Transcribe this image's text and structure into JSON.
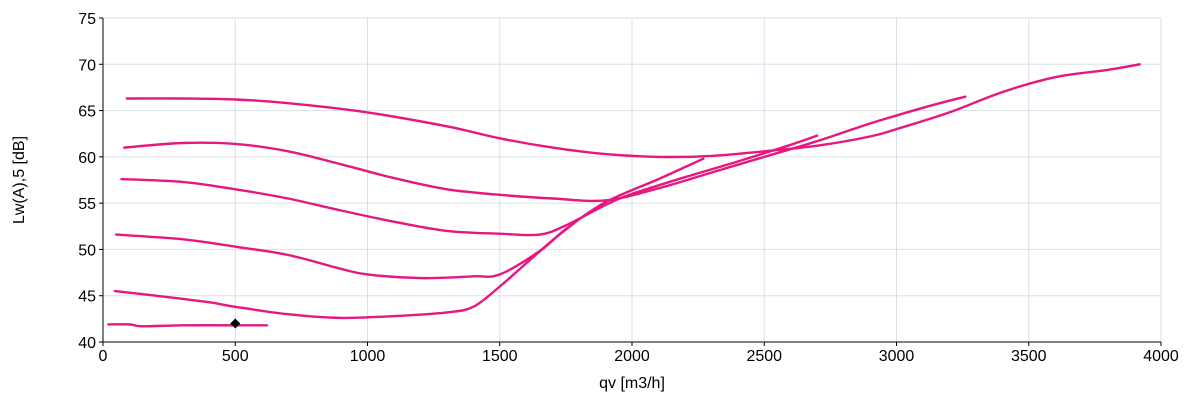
{
  "chart_data": {
    "type": "line",
    "xlabel": "qv [m3/h]",
    "ylabel": "Lw(A),5 [dB]",
    "xlim": [
      0,
      4000
    ],
    "ylim": [
      40,
      75
    ],
    "xticks": [
      "0",
      "500",
      "1000",
      "1500",
      "2000",
      "2500",
      "3000",
      "3500",
      "4000"
    ],
    "yticks": [
      "40",
      "45",
      "50",
      "55",
      "60",
      "65",
      "70",
      "75"
    ],
    "grid": true,
    "line_color": "#e6177e",
    "marker_color": "#000000",
    "series": [
      {
        "x": [
          90,
          300,
          500,
          700,
          1000,
          1300,
          1500,
          1700,
          1900,
          2100,
          2300,
          2500,
          2700,
          2900,
          3000,
          3200,
          3400,
          3600,
          3800,
          3920
        ],
        "y": [
          66.3,
          66.3,
          66.2,
          65.8,
          64.8,
          63.3,
          62.0,
          61.0,
          60.3,
          60.0,
          60.1,
          60.6,
          61.2,
          62.2,
          63.0,
          64.8,
          67.0,
          68.6,
          69.4,
          70.0
        ]
      },
      {
        "x": [
          80,
          300,
          500,
          700,
          900,
          1100,
          1300,
          1500,
          1700,
          1900,
          2100,
          2300,
          2500,
          2700,
          2900,
          3100,
          3260
        ],
        "y": [
          61.0,
          61.5,
          61.4,
          60.6,
          59.2,
          57.7,
          56.5,
          55.9,
          55.5,
          55.3,
          56.6,
          58.3,
          60.0,
          61.7,
          63.6,
          65.3,
          66.5
        ]
      },
      {
        "x": [
          70,
          300,
          500,
          700,
          900,
          1100,
          1300,
          1500,
          1650,
          1750,
          1900,
          2000,
          2200,
          2400,
          2600,
          2700
        ],
        "y": [
          57.6,
          57.3,
          56.5,
          55.5,
          54.2,
          53.0,
          52.0,
          51.7,
          51.6,
          52.6,
          54.8,
          56.0,
          57.8,
          59.5,
          61.3,
          62.3
        ]
      },
      {
        "x": [
          50,
          300,
          500,
          700,
          900,
          1000,
          1200,
          1400,
          1500,
          1650,
          1750,
          1900,
          2100,
          2270
        ],
        "y": [
          51.6,
          51.1,
          50.3,
          49.4,
          47.9,
          47.3,
          46.9,
          47.1,
          47.3,
          49.8,
          52.2,
          55.1,
          57.6,
          59.8
        ]
      },
      {
        "x": [
          45,
          200,
          400,
          500,
          700,
          900,
          1100,
          1300,
          1400,
          1500,
          1600,
          1700,
          1780
        ],
        "y": [
          45.5,
          45.0,
          44.3,
          43.8,
          43.0,
          42.6,
          42.8,
          43.2,
          43.8,
          46.0,
          48.5,
          51.0,
          52.8
        ]
      },
      {
        "x": [
          20,
          100,
          150,
          300,
          500,
          620
        ],
        "y": [
          41.9,
          41.9,
          41.7,
          41.8,
          41.8,
          41.8
        ]
      }
    ],
    "marker": {
      "x": 500,
      "y": 42.0
    }
  }
}
